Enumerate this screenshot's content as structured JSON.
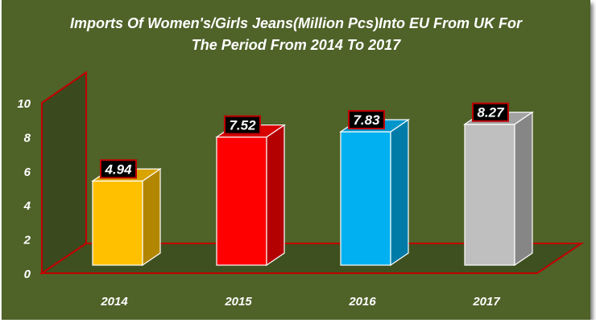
{
  "chart_data": {
    "type": "bar",
    "title": "Imports Of Women's/Girls Jeans(Million Pcs)Into EU From UK For\nThe Period From 2014 To 2017",
    "xlabel": "",
    "ylabel": "",
    "categories": [
      "2014",
      "2015",
      "2016",
      "2017"
    ],
    "values": [
      4.94,
      7.52,
      7.83,
      8.27
    ],
    "data_labels": [
      "4.94",
      "7.52",
      "7.83",
      "8.27"
    ],
    "y_ticks": [
      "0",
      "2",
      "4",
      "6",
      "8",
      "10"
    ],
    "ylim": [
      0,
      10
    ],
    "grid": false,
    "legend": "none",
    "style": "3d-column",
    "colors": {
      "background": "#4f6228",
      "bars": [
        "#ffc000",
        "#ff0000",
        "#00b0f0",
        "#bfbfbf"
      ],
      "walls": "#3b4a1e",
      "wall_border": "#c00000",
      "label_box": "#000000"
    }
  }
}
